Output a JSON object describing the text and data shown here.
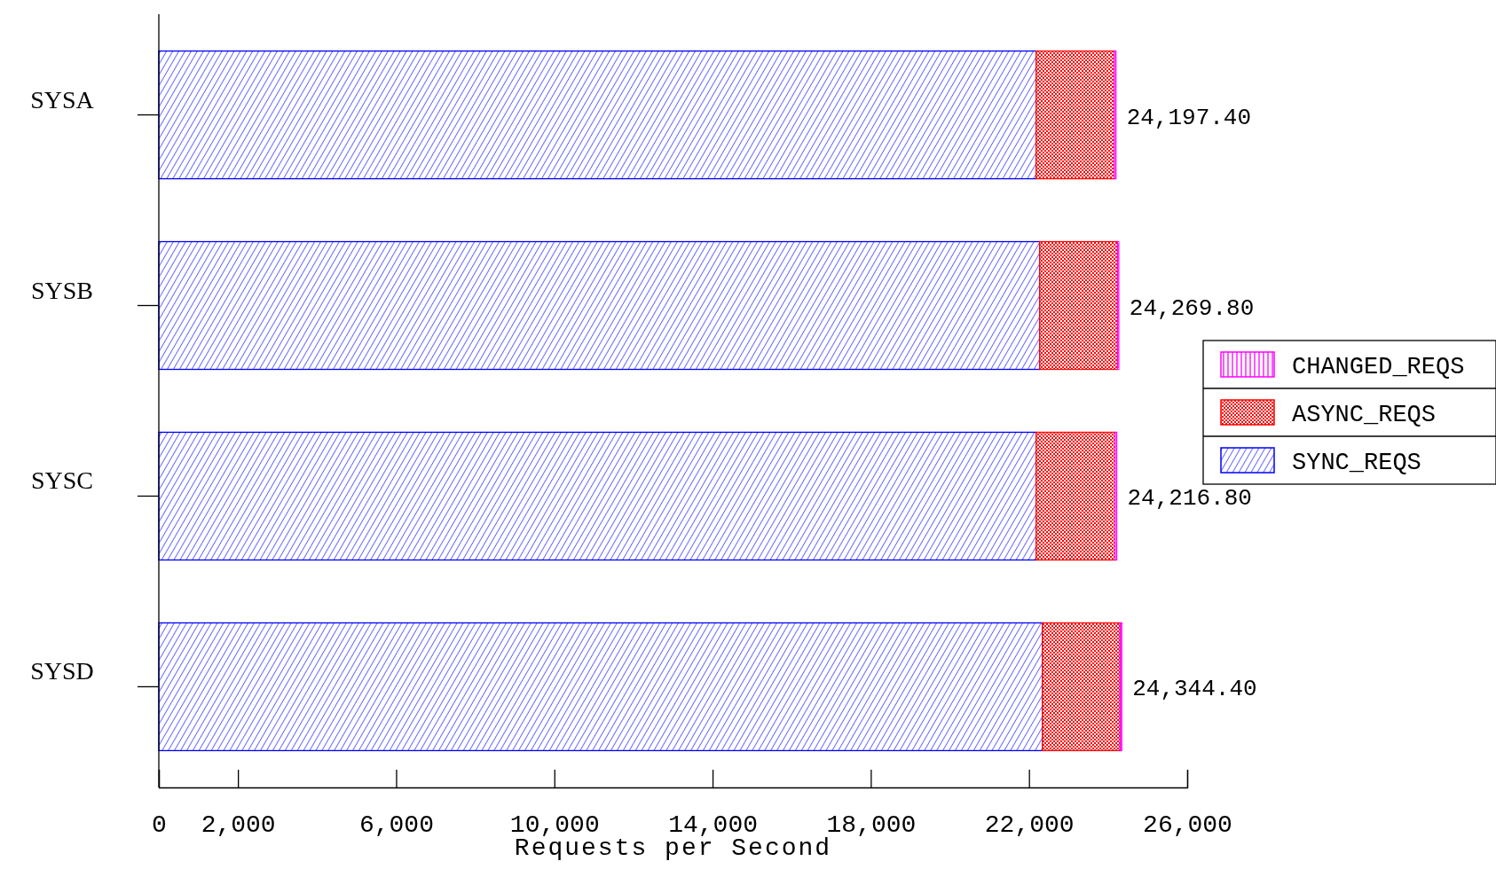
{
  "chart_data": {
    "type": "bar",
    "orientation": "horizontal",
    "stacked": true,
    "xlabel": "Requests per Second",
    "categories": [
      "SYSA",
      "SYSB",
      "SYSC",
      "SYSD"
    ],
    "series": [
      {
        "name": "SYNC_REQS",
        "color": "#0000ff",
        "values": [
          22180,
          22270,
          22180,
          22340
        ]
      },
      {
        "name": "ASYNC_REQS",
        "color": "#ff0000",
        "values": [
          1977.4,
          1969.8,
          1996.8,
          1964.4
        ]
      },
      {
        "name": "CHANGED_REQS",
        "color": "#ff00ff",
        "values": [
          40,
          30,
          40,
          40
        ]
      }
    ],
    "totals": [
      "24,197.40",
      "24,269.80",
      "24,216.80",
      "24,344.40"
    ],
    "xlim": [
      0,
      26000
    ],
    "xticks": [
      0,
      {
        "value": 2000,
        "label": "2,000"
      },
      {
        "value": 6000,
        "label": "6,000"
      },
      {
        "value": 10000,
        "label": "10,000"
      },
      {
        "value": 14000,
        "label": "14,000"
      },
      {
        "value": 18000,
        "label": "18,000"
      },
      {
        "value": 22000,
        "label": "22,000"
      },
      {
        "value": 26000,
        "label": "26,000"
      }
    ],
    "legend": "right"
  }
}
